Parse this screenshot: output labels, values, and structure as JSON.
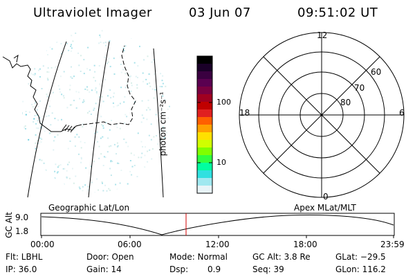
{
  "header": {
    "instrument": "Ultraviolet Imager",
    "date": "03 Jun 07",
    "time": "09:51:02 UT"
  },
  "colorbar": {
    "unit_label": "photon cm⁻²s⁻¹",
    "ticks": [
      "100",
      "10"
    ],
    "colors": [
      "#000000",
      "#1a0028",
      "#3a0040",
      "#5a0050",
      "#7a0040",
      "#a00020",
      "#c00000",
      "#e02020",
      "#ff6000",
      "#ffa000",
      "#ffe000",
      "#d0ff00",
      "#80ff00",
      "#30ff40",
      "#00ffa0",
      "#30e0e0",
      "#a0e8f0",
      "#e8f4f8"
    ]
  },
  "polar_plot": {
    "clock_labels": [
      "12",
      "18",
      "6",
      "0"
    ],
    "lat_labels": [
      "60",
      "70",
      "80"
    ]
  },
  "timeline": {
    "ylabel": "GC Alt",
    "yticks": [
      "9.0",
      "1.8"
    ],
    "left_title": "Geographic Lat/Lon",
    "right_title": "Apex MLat/MLT",
    "xticks": [
      "00:00",
      "06:00",
      "12:00",
      "18:00",
      "23:59"
    ],
    "marker_color": "#d00000"
  },
  "info": {
    "flt": "Flt: LBHL",
    "ip": "IP: 36.0",
    "door": "Door: Open",
    "gain": "Gain: 14",
    "mode": "Mode: Normal",
    "dsp_label": "Dsp:",
    "dsp_value": "0.9",
    "gc_alt": "GC Alt: 3.8 Re",
    "seq": "Seq: 39",
    "glat": "GLat: −29.5",
    "glon": "GLon: 116.2"
  }
}
